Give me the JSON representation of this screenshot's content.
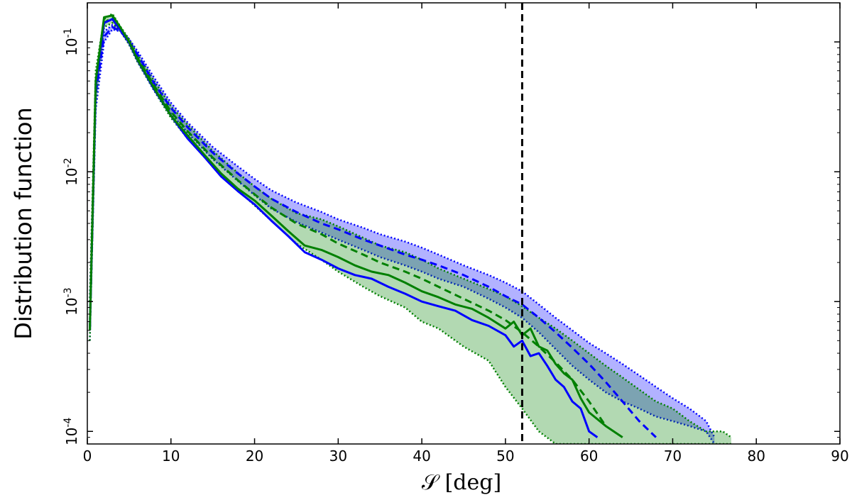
{
  "chart_data": {
    "type": "line",
    "title": "",
    "xlabel": "𝒮 [deg]",
    "ylabel": "Distribution function",
    "xlim": [
      0,
      90
    ],
    "ylim": [
      8e-05,
      0.2
    ],
    "yscale": "log",
    "x_ticks": [
      0,
      10,
      20,
      30,
      40,
      50,
      60,
      70,
      80,
      90
    ],
    "y_ticks": [
      {
        "value": 0.0001,
        "label_base": "10",
        "label_exp": "-4"
      },
      {
        "value": 0.001,
        "label_base": "10",
        "label_exp": "-3"
      },
      {
        "value": 0.01,
        "label_base": "10",
        "label_exp": "-2"
      },
      {
        "value": 0.1,
        "label_base": "10",
        "label_exp": "-1"
      }
    ],
    "grid": false,
    "legend": "none",
    "vline": {
      "x": 52,
      "style": "dashed",
      "color": "#000000"
    },
    "bands": [
      {
        "color": "#0000ff",
        "fill_opacity": 0.3,
        "edge_style": "dotted",
        "x": [
          0.3,
          1,
          2,
          3,
          4,
          5,
          6,
          8,
          10,
          12,
          15,
          18,
          20,
          22,
          25,
          28,
          30,
          33,
          35,
          38,
          40,
          42,
          45,
          48,
          50,
          52,
          54,
          56,
          58,
          60,
          62,
          64,
          66,
          68,
          70,
          72,
          74,
          75
        ],
        "lower": [
          0.0005,
          0.03,
          0.1,
          0.125,
          0.12,
          0.1,
          0.075,
          0.045,
          0.028,
          0.02,
          0.0125,
          0.0085,
          0.0066,
          0.0052,
          0.0041,
          0.0034,
          0.003,
          0.0025,
          0.0022,
          0.0019,
          0.0017,
          0.0015,
          0.0013,
          0.00105,
          0.0009,
          0.00075,
          0.00058,
          0.00043,
          0.00032,
          0.00025,
          0.0002,
          0.00017,
          0.00015,
          0.00013,
          0.00012,
          0.00011,
          0.0001,
          8e-05
        ],
        "upper": [
          0.001,
          0.05,
          0.12,
          0.135,
          0.125,
          0.105,
          0.085,
          0.053,
          0.034,
          0.024,
          0.0155,
          0.011,
          0.0088,
          0.0072,
          0.0058,
          0.0049,
          0.0043,
          0.0037,
          0.0033,
          0.0029,
          0.0026,
          0.0023,
          0.0019,
          0.0016,
          0.0014,
          0.0012,
          0.00095,
          0.00075,
          0.0006,
          0.00048,
          0.0004,
          0.00033,
          0.00027,
          0.00022,
          0.00018,
          0.00015,
          0.00012,
          9e-05
        ]
      },
      {
        "color": "#008000",
        "fill_opacity": 0.3,
        "edge_style": "dotted",
        "x": [
          0.3,
          1,
          2,
          3,
          4,
          5,
          6,
          8,
          10,
          12,
          15,
          18,
          20,
          22,
          25,
          28,
          30,
          33,
          35,
          38,
          40,
          42,
          45,
          48,
          50,
          52,
          54,
          56,
          58,
          60,
          62,
          64,
          66,
          68,
          70,
          72,
          74,
          76,
          77
        ],
        "lower": [
          0.0005,
          0.035,
          0.13,
          0.14,
          0.12,
          0.095,
          0.07,
          0.042,
          0.026,
          0.018,
          0.011,
          0.0072,
          0.0055,
          0.0042,
          0.0028,
          0.0021,
          0.0017,
          0.0013,
          0.0011,
          0.0009,
          0.0007,
          0.00062,
          0.00045,
          0.00035,
          0.00022,
          0.00015,
          0.0001,
          8e-05,
          8e-05,
          8e-05,
          8e-05,
          8e-05,
          8e-05,
          8e-05,
          8e-05,
          8e-05,
          8e-05,
          8e-05,
          8e-05
        ],
        "upper": [
          0.001,
          0.06,
          0.15,
          0.165,
          0.13,
          0.105,
          0.08,
          0.05,
          0.032,
          0.023,
          0.0145,
          0.0098,
          0.0077,
          0.0062,
          0.0048,
          0.0043,
          0.0038,
          0.0031,
          0.0027,
          0.0024,
          0.0021,
          0.0018,
          0.0015,
          0.00125,
          0.0011,
          0.00092,
          0.00075,
          0.00062,
          0.0005,
          0.0004,
          0.00032,
          0.00026,
          0.00021,
          0.00017,
          0.00015,
          0.00012,
          0.0001,
          0.0001,
          9e-05
        ]
      }
    ],
    "series": [
      {
        "color": "#0000ff",
        "style": "dashed",
        "width": 3,
        "x": [
          0.3,
          1,
          2,
          3,
          4,
          5,
          6,
          8,
          10,
          12,
          15,
          18,
          20,
          22,
          25,
          28,
          30,
          33,
          35,
          38,
          40,
          42,
          45,
          48,
          50,
          52,
          54,
          56,
          58,
          60,
          62,
          64,
          66,
          68
        ],
        "y": [
          0.0006,
          0.04,
          0.11,
          0.13,
          0.12,
          0.1,
          0.08,
          0.048,
          0.031,
          0.022,
          0.014,
          0.0097,
          0.0077,
          0.0062,
          0.0049,
          0.004,
          0.0036,
          0.003,
          0.0027,
          0.0023,
          0.0021,
          0.0019,
          0.0016,
          0.0013,
          0.0011,
          0.00095,
          0.00075,
          0.00058,
          0.00044,
          0.00033,
          0.00024,
          0.00017,
          0.00012,
          9e-05
        ]
      },
      {
        "color": "#008000",
        "style": "dashed",
        "width": 3,
        "x": [
          0.3,
          1,
          2,
          3,
          4,
          5,
          6,
          8,
          10,
          12,
          15,
          18,
          20,
          22,
          25,
          28,
          30,
          33,
          35,
          38,
          40,
          42,
          45,
          48,
          50,
          52,
          54,
          56,
          58,
          60,
          62
        ],
        "y": [
          0.0006,
          0.045,
          0.14,
          0.155,
          0.125,
          0.1,
          0.075,
          0.046,
          0.029,
          0.0205,
          0.0128,
          0.0086,
          0.0067,
          0.0053,
          0.004,
          0.0033,
          0.0028,
          0.0023,
          0.002,
          0.0017,
          0.0015,
          0.0013,
          0.00105,
          0.00085,
          0.00072,
          0.00058,
          0.00045,
          0.00034,
          0.00025,
          0.00017,
          0.00011
        ]
      },
      {
        "color": "#0000ff",
        "style": "solid",
        "width": 3,
        "x": [
          0.3,
          1,
          2,
          3,
          4,
          5,
          6,
          8,
          10,
          12,
          14,
          16,
          18,
          20,
          22,
          24,
          26,
          28,
          30,
          32,
          34,
          36,
          38,
          40,
          42,
          44,
          46,
          48,
          50,
          51,
          52,
          53,
          54,
          55,
          56,
          57,
          58,
          59,
          60,
          61
        ],
        "y": [
          0.0006,
          0.045,
          0.14,
          0.15,
          0.122,
          0.098,
          0.072,
          0.043,
          0.027,
          0.018,
          0.013,
          0.0092,
          0.0071,
          0.0056,
          0.0042,
          0.0032,
          0.0024,
          0.0021,
          0.0018,
          0.0016,
          0.0015,
          0.0013,
          0.00115,
          0.001,
          0.00092,
          0.00085,
          0.00072,
          0.00065,
          0.00055,
          0.00045,
          0.0005,
          0.00038,
          0.0004,
          0.00032,
          0.00025,
          0.00022,
          0.00017,
          0.00015,
          0.0001,
          9e-05
        ]
      },
      {
        "color": "#008000",
        "style": "solid",
        "width": 3,
        "x": [
          0.3,
          1,
          2,
          3,
          4,
          5,
          6,
          8,
          10,
          12,
          14,
          16,
          18,
          20,
          22,
          24,
          26,
          28,
          30,
          32,
          34,
          36,
          38,
          40,
          42,
          44,
          46,
          48,
          50,
          51,
          52,
          53,
          54,
          55,
          56,
          57,
          58,
          59,
          60,
          62,
          64
        ],
        "y": [
          0.0006,
          0.05,
          0.155,
          0.16,
          0.128,
          0.1,
          0.073,
          0.044,
          0.027,
          0.019,
          0.0135,
          0.0097,
          0.0074,
          0.006,
          0.0046,
          0.0035,
          0.0027,
          0.0025,
          0.0022,
          0.0019,
          0.0017,
          0.0016,
          0.0014,
          0.0012,
          0.00108,
          0.00095,
          0.00088,
          0.00075,
          0.00062,
          0.0007,
          0.00055,
          0.00062,
          0.00045,
          0.00042,
          0.00033,
          0.00028,
          0.00025,
          0.00018,
          0.00014,
          0.00011,
          9e-05
        ]
      }
    ]
  }
}
